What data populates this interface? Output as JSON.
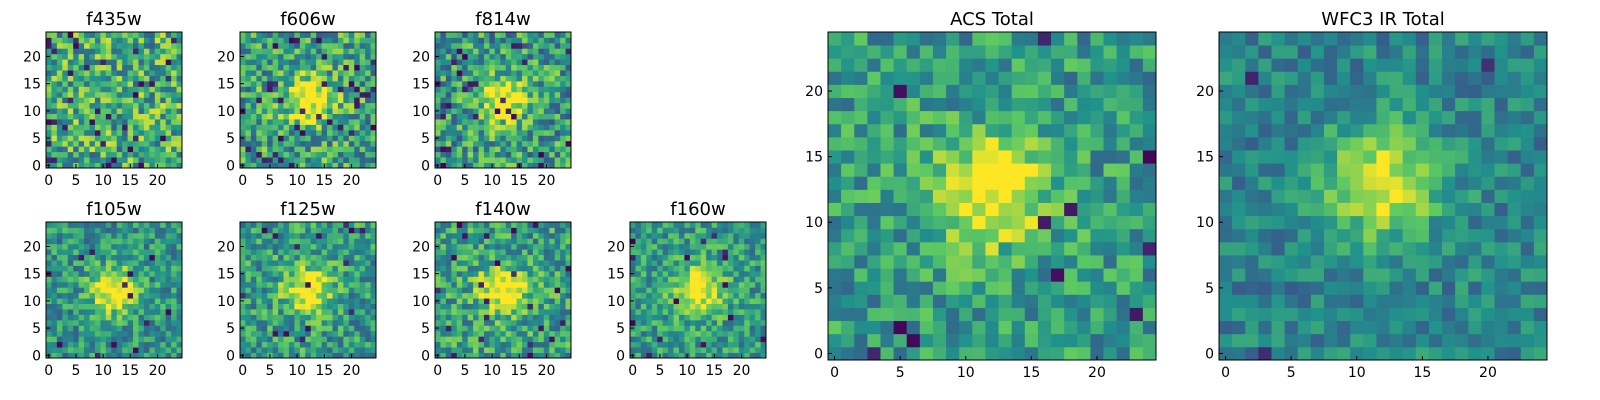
{
  "figure": {
    "colormap": "viridis",
    "colors": [
      "#440154",
      "#3b528b",
      "#21918c",
      "#5ec962",
      "#fde725"
    ]
  },
  "chart_data": [
    {
      "type": "heatmap",
      "title": "f435w",
      "grid_size": 25,
      "xticks": [
        "0",
        "5",
        "10",
        "15",
        "20"
      ],
      "yticks": [
        "0",
        "5",
        "10",
        "15",
        "20"
      ],
      "xlim": [
        0,
        25
      ],
      "ylim": [
        0,
        25
      ],
      "source_center": null,
      "base_level": 0.62,
      "noise": 0.32,
      "spike_probability": 0.05,
      "seed": 11
    },
    {
      "type": "heatmap",
      "title": "f606w",
      "grid_size": 25,
      "xticks": [
        "0",
        "5",
        "10",
        "15",
        "20"
      ],
      "yticks": [
        "0",
        "5",
        "10",
        "15",
        "20"
      ],
      "xlim": [
        0,
        25
      ],
      "ylim": [
        0,
        25
      ],
      "source_center": [
        12.5,
        12.5
      ],
      "base_level": 0.58,
      "noise": 0.3,
      "spike_probability": 0.05,
      "seed": 23
    },
    {
      "type": "heatmap",
      "title": "f814w",
      "grid_size": 25,
      "xticks": [
        "0",
        "5",
        "10",
        "15",
        "20"
      ],
      "yticks": [
        "0",
        "5",
        "10",
        "15",
        "20"
      ],
      "xlim": [
        0,
        25
      ],
      "ylim": [
        0,
        25
      ],
      "source_center": [
        12.5,
        12.5
      ],
      "base_level": 0.55,
      "noise": 0.3,
      "spike_probability": 0.05,
      "seed": 37
    },
    {
      "type": "heatmap",
      "title": "f105w",
      "grid_size": 25,
      "xticks": [
        "0",
        "5",
        "10",
        "15",
        "20"
      ],
      "yticks": [
        "0",
        "5",
        "10",
        "15",
        "20"
      ],
      "xlim": [
        0,
        25
      ],
      "ylim": [
        0,
        25
      ],
      "source_center": [
        12.5,
        12.5
      ],
      "base_level": 0.52,
      "noise": 0.22,
      "spike_probability": 0.02,
      "seed": 41
    },
    {
      "type": "heatmap",
      "title": "f125w",
      "grid_size": 25,
      "xticks": [
        "0",
        "5",
        "10",
        "15",
        "20"
      ],
      "yticks": [
        "0",
        "5",
        "10",
        "15",
        "20"
      ],
      "xlim": [
        0,
        25
      ],
      "ylim": [
        0,
        25
      ],
      "source_center": [
        12.5,
        12.5
      ],
      "base_level": 0.55,
      "noise": 0.25,
      "spike_probability": 0.03,
      "seed": 53
    },
    {
      "type": "heatmap",
      "title": "f140w",
      "grid_size": 25,
      "xticks": [
        "0",
        "5",
        "10",
        "15",
        "20"
      ],
      "yticks": [
        "0",
        "5",
        "10",
        "15",
        "20"
      ],
      "xlim": [
        0,
        25
      ],
      "ylim": [
        0,
        25
      ],
      "source_center": [
        12.5,
        12.5
      ],
      "base_level": 0.57,
      "noise": 0.25,
      "spike_probability": 0.03,
      "seed": 67
    },
    {
      "type": "heatmap",
      "title": "f160w",
      "grid_size": 25,
      "xticks": [
        "0",
        "5",
        "10",
        "15",
        "20"
      ],
      "yticks": [
        "0",
        "5",
        "10",
        "15",
        "20"
      ],
      "xlim": [
        0,
        25
      ],
      "ylim": [
        0,
        25
      ],
      "source_center": [
        12.5,
        12.5
      ],
      "base_level": 0.55,
      "noise": 0.22,
      "spike_probability": 0.03,
      "seed": 79
    },
    {
      "type": "heatmap",
      "title": "ACS Total",
      "grid_size": 25,
      "xticks": [
        "0",
        "5",
        "10",
        "15",
        "20"
      ],
      "yticks": [
        "0",
        "5",
        "10",
        "15",
        "20"
      ],
      "xlim": [
        0,
        25
      ],
      "ylim": [
        0,
        25
      ],
      "source_center": [
        12.5,
        13
      ],
      "base_level": 0.55,
      "noise": 0.22,
      "spike_probability": 0.02,
      "seed": 91
    },
    {
      "type": "heatmap",
      "title": "WFC3 IR Total",
      "grid_size": 25,
      "xticks": [
        "0",
        "5",
        "10",
        "15",
        "20"
      ],
      "yticks": [
        "0",
        "5",
        "10",
        "15",
        "20"
      ],
      "xlim": [
        0,
        25
      ],
      "ylim": [
        0,
        25
      ],
      "source_center": [
        12.5,
        13.5
      ],
      "base_level": 0.45,
      "noise": 0.16,
      "spike_probability": 0.015,
      "seed": 103
    }
  ]
}
